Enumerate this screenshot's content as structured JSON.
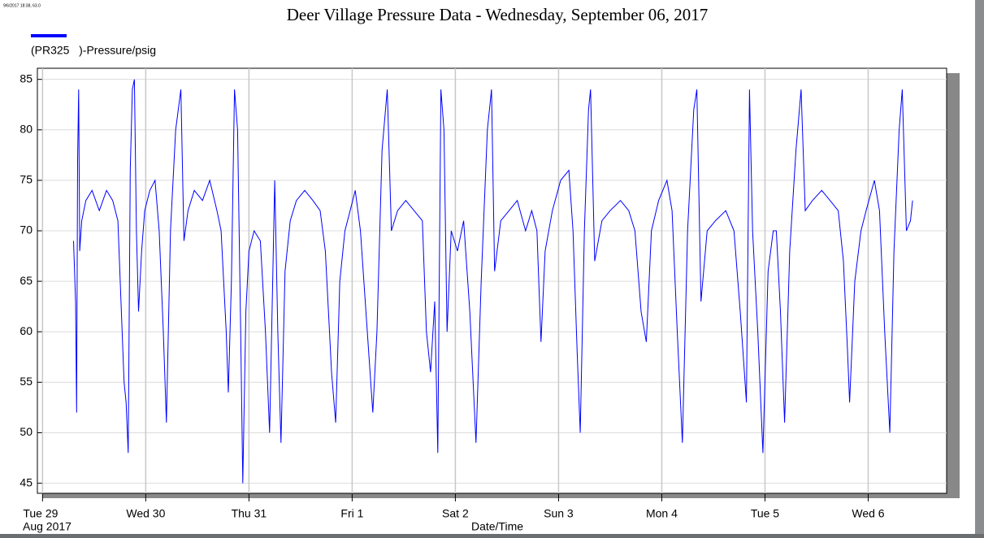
{
  "window": {
    "cursor_readout": "9/6/2017 18:38, 63.0"
  },
  "chart_data": {
    "type": "line",
    "title": "Deer Village Pressure Data - Wednesday, September 06, 2017",
    "x_label": "Date/Time",
    "x_sublabel": "Aug 2017",
    "xlim": [
      -0.05,
      8.76
    ],
    "xticks": [
      {
        "value": 0,
        "label": "Tue 29"
      },
      {
        "value": 1,
        "label": "Wed 30"
      },
      {
        "value": 2,
        "label": "Thu 31"
      },
      {
        "value": 3,
        "label": "Fri 1"
      },
      {
        "value": 4,
        "label": "Sat 2"
      },
      {
        "value": 5,
        "label": "Sun 3"
      },
      {
        "value": 6,
        "label": "Mon 4"
      },
      {
        "value": 7,
        "label": "Tue 5"
      },
      {
        "value": 8,
        "label": "Wed 6"
      }
    ],
    "ylim": [
      44,
      86.1
    ],
    "yticks": [
      45,
      50,
      55,
      60,
      65,
      70,
      75,
      80,
      85
    ],
    "grid": true,
    "legend": "top-left",
    "x": [
      0.3,
      0.32,
      0.33,
      0.34,
      0.35,
      0.36,
      0.38,
      0.42,
      0.48,
      0.55,
      0.62,
      0.68,
      0.73,
      0.76,
      0.79,
      0.81,
      0.83,
      0.85,
      0.87,
      0.89,
      0.91,
      0.93,
      0.96,
      0.99,
      1.04,
      1.09,
      1.13,
      1.17,
      1.2,
      1.24,
      1.29,
      1.34,
      1.37,
      1.41,
      1.47,
      1.55,
      1.62,
      1.69,
      1.73,
      1.78,
      1.8,
      1.83,
      1.86,
      1.89,
      1.92,
      1.94,
      1.97,
      2.0,
      2.05,
      2.11,
      2.16,
      2.2,
      2.23,
      2.25,
      2.28,
      2.31,
      2.35,
      2.4,
      2.46,
      2.54,
      2.62,
      2.69,
      2.74,
      2.78,
      2.8,
      2.84,
      2.88,
      2.93,
      2.98,
      3.03,
      3.08,
      3.14,
      3.2,
      3.24,
      3.29,
      3.34,
      3.38,
      3.44,
      3.52,
      3.6,
      3.68,
      3.72,
      3.76,
      3.8,
      3.83,
      3.86,
      3.89,
      3.92,
      3.96,
      4.02,
      4.08,
      4.14,
      4.2,
      4.25,
      4.31,
      4.35,
      4.38,
      4.44,
      4.52,
      4.6,
      4.68,
      4.74,
      4.79,
      4.83,
      4.87,
      4.94,
      5.02,
      5.1,
      5.14,
      5.18,
      5.21,
      5.25,
      5.29,
      5.31,
      5.35,
      5.42,
      5.5,
      5.6,
      5.68,
      5.74,
      5.8,
      5.85,
      5.9,
      5.97,
      6.05,
      6.1,
      6.15,
      6.2,
      6.25,
      6.31,
      6.34,
      6.38,
      6.44,
      6.52,
      6.62,
      6.7,
      6.76,
      6.8,
      6.82,
      6.85,
      6.88,
      6.93,
      6.98,
      7.03,
      7.08,
      7.11,
      7.15,
      7.19,
      7.24,
      7.3,
      7.35,
      7.39,
      7.46,
      7.55,
      7.63,
      7.71,
      7.76,
      7.8,
      7.82,
      7.87,
      7.93,
      7.98,
      8.06,
      8.11,
      8.16,
      8.21,
      8.25,
      8.3,
      8.33,
      8.37,
      8.41,
      8.43
    ],
    "series": [
      {
        "name": "(PR325   )-Pressure/psig",
        "color": "#0000ff",
        "values": [
          69,
          63,
          52,
          77,
          84,
          68,
          71,
          73,
          74,
          72,
          74,
          73,
          71,
          63,
          55,
          53,
          48,
          76,
          84,
          85,
          70,
          62,
          68,
          72,
          74,
          75,
          70,
          60,
          51,
          70,
          80,
          84,
          69,
          72,
          74,
          73,
          75,
          72,
          70,
          60,
          54,
          65,
          84,
          80,
          60,
          45,
          62,
          68,
          70,
          69,
          60,
          50,
          65,
          75,
          60,
          49,
          66,
          71,
          73,
          74,
          73,
          72,
          68,
          60,
          56,
          51,
          65,
          70,
          72,
          74,
          70,
          61,
          52,
          60,
          78,
          84,
          70,
          72,
          73,
          72,
          71,
          60,
          56,
          63,
          48,
          84,
          80,
          60,
          70,
          68,
          71,
          62,
          49,
          65,
          80,
          84,
          66,
          71,
          72,
          73,
          70,
          72,
          70,
          59,
          68,
          72,
          75,
          76,
          70,
          58,
          50,
          70,
          82,
          84,
          67,
          71,
          72,
          73,
          72,
          70,
          62,
          59,
          70,
          73,
          75,
          72,
          60,
          49,
          70,
          82,
          84,
          63,
          70,
          71,
          72,
          70,
          62,
          56,
          53,
          84,
          70,
          60,
          48,
          66,
          70,
          70,
          62,
          51,
          68,
          78,
          84,
          72,
          73,
          74,
          73,
          72,
          67,
          58,
          53,
          65,
          70,
          72,
          75,
          72,
          60,
          50,
          68,
          80,
          84,
          70,
          71,
          73
        ]
      }
    ]
  }
}
